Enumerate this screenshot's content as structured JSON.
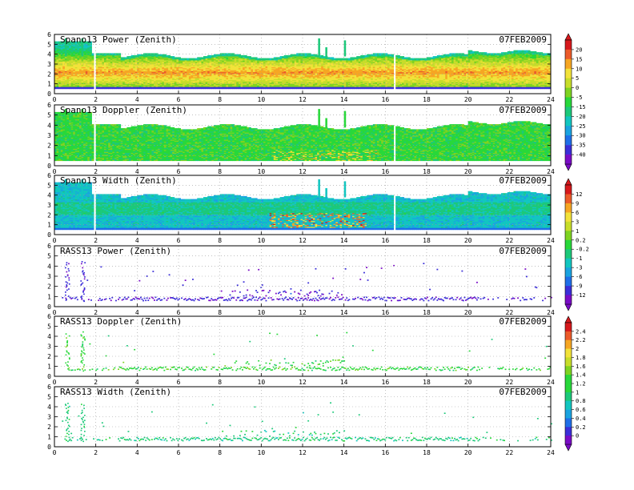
{
  "date": "07FEB2009",
  "colorbars": [
    {
      "ticks": [
        "20",
        "15",
        "10",
        "5",
        "0",
        "-5",
        "-15",
        "-20",
        "-25",
        "-30",
        "-35",
        "-40"
      ]
    },
    {
      "ticks": [
        "12",
        "9",
        "6",
        "3",
        "1",
        "0.2",
        "-0.2",
        "-1",
        "-3",
        "-6",
        "-9",
        "-12"
      ]
    },
    {
      "ticks": [
        "2.4",
        "2.2",
        "2",
        "1.8",
        "1.6",
        "1.4",
        "1.2",
        "1",
        "0.8",
        "0.6",
        "0.4",
        "0.2",
        "0"
      ]
    }
  ],
  "chart_data": [
    {
      "type": "heatmap",
      "title": "Spano13 Power (Zenith)",
      "xlim": [
        0,
        24
      ],
      "ylim": [
        0,
        6
      ],
      "xticks": [
        "0",
        "2",
        "4",
        "6",
        "8",
        "10",
        "12",
        "14",
        "16",
        "18",
        "20",
        "22",
        "24"
      ],
      "yticks": [
        "0",
        "1",
        "2",
        "3",
        "4",
        "5",
        "6"
      ],
      "grid": true
    },
    {
      "type": "heatmap",
      "title": "Spano13 Doppler (Zenith)",
      "xlim": [
        0,
        24
      ],
      "ylim": [
        0,
        6
      ],
      "xticks": [
        "0",
        "2",
        "4",
        "6",
        "8",
        "10",
        "12",
        "14",
        "16",
        "18",
        "20",
        "22",
        "24"
      ],
      "yticks": [
        "0",
        "1",
        "2",
        "3",
        "4",
        "5",
        "6"
      ],
      "grid": true
    },
    {
      "type": "heatmap",
      "title": "Spano13 Width (Zenith)",
      "xlim": [
        0,
        24
      ],
      "ylim": [
        0,
        6
      ],
      "xticks": [
        "0",
        "2",
        "4",
        "6",
        "8",
        "10",
        "12",
        "14",
        "16",
        "18",
        "20",
        "22",
        "24"
      ],
      "yticks": [
        "0",
        "1",
        "2",
        "3",
        "4",
        "5",
        "6"
      ],
      "grid": true
    },
    {
      "type": "heatmap",
      "title": "RASS13 Power (Zenith)",
      "xlim": [
        0,
        24
      ],
      "ylim": [
        0,
        6
      ],
      "xticks": [
        "0",
        "2",
        "4",
        "6",
        "8",
        "10",
        "12",
        "14",
        "16",
        "18",
        "20",
        "22",
        "24"
      ],
      "yticks": [
        "0",
        "1",
        "2",
        "3",
        "4",
        "5",
        "6"
      ],
      "grid": true
    },
    {
      "type": "heatmap",
      "title": "RASS13 Doppler (Zenith)",
      "xlim": [
        0,
        24
      ],
      "ylim": [
        0,
        6
      ],
      "xticks": [
        "0",
        "2",
        "4",
        "6",
        "8",
        "10",
        "12",
        "14",
        "16",
        "18",
        "20",
        "22",
        "24"
      ],
      "yticks": [
        "0",
        "1",
        "2",
        "3",
        "4",
        "5",
        "6"
      ],
      "grid": true
    },
    {
      "type": "heatmap",
      "title": "RASS13 Width (Zenith)",
      "xlim": [
        0,
        24
      ],
      "ylim": [
        0,
        6
      ],
      "xticks": [
        "0",
        "2",
        "4",
        "6",
        "8",
        "10",
        "12",
        "14",
        "16",
        "18",
        "20",
        "22",
        "24"
      ],
      "yticks": [
        "0",
        "1",
        "2",
        "3",
        "4",
        "5",
        "6"
      ],
      "grid": true
    }
  ]
}
